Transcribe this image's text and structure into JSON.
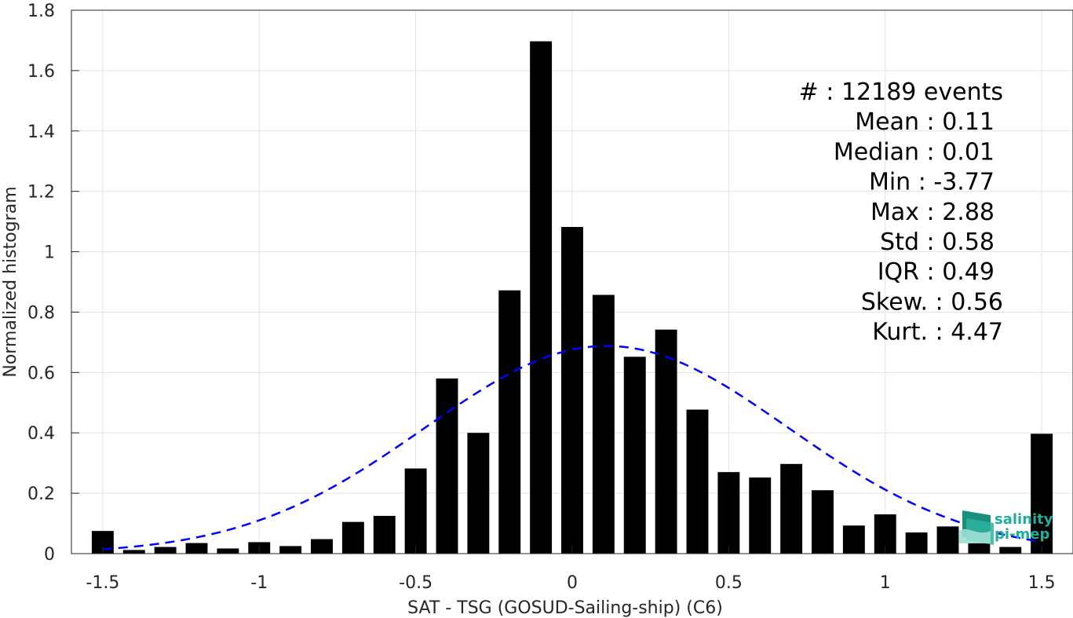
{
  "chart_data": {
    "type": "bar",
    "xlabel": "SAT - TSG (GOSUD-Sailing-ship) (C6)",
    "ylabel": "Normalized histogram",
    "xlim": [
      -1.6,
      1.6
    ],
    "ylim": [
      0,
      1.8
    ],
    "xticks": [
      -1.5,
      -1,
      -0.5,
      0,
      0.5,
      1,
      1.5
    ],
    "xtick_labels": [
      "-1.5",
      "-1",
      "-0.5",
      "0",
      "0.5",
      "1",
      "1.5"
    ],
    "yticks": [
      0,
      0.2,
      0.4,
      0.6,
      0.8,
      1,
      1.2,
      1.4,
      1.6,
      1.8
    ],
    "ytick_labels": [
      "0",
      "0.2",
      "0.4",
      "0.6",
      "0.8",
      "1",
      "1.2",
      "1.4",
      "1.6",
      "1.8"
    ],
    "grid": true,
    "bar_width": 0.07,
    "bar_color": "#000000",
    "x": [
      -1.5,
      -1.4,
      -1.3,
      -1.2,
      -1.1,
      -1.0,
      -0.9,
      -0.8,
      -0.7,
      -0.6,
      -0.5,
      -0.4,
      -0.3,
      -0.2,
      -0.1,
      0.0,
      0.1,
      0.2,
      0.3,
      0.4,
      0.5,
      0.6,
      0.7,
      0.8,
      0.9,
      1.0,
      1.1,
      1.2,
      1.3,
      1.4,
      1.5
    ],
    "values": [
      0.075,
      0.012,
      0.022,
      0.035,
      0.017,
      0.038,
      0.025,
      0.048,
      0.105,
      0.125,
      0.282,
      0.58,
      0.4,
      0.872,
      1.697,
      1.082,
      0.857,
      0.652,
      0.742,
      0.477,
      0.27,
      0.252,
      0.297,
      0.21,
      0.093,
      0.13,
      0.07,
      0.09,
      0.035,
      0.022,
      0.397
    ],
    "fit_curve": {
      "type": "gaussian",
      "mean": 0.11,
      "std": 0.58,
      "x_range": [
        -1.5,
        1.5
      ],
      "color": "#0000ff",
      "style": "dashed"
    },
    "annotations": [
      "#  : 12189 events",
      "Mean : 0.11",
      "Median : 0.01",
      "Min : -3.77",
      "Max : 2.88",
      "Std : 0.58",
      "IQR : 0.49",
      "Skew. : 0.56",
      "Kurt. : 4.47"
    ]
  },
  "logo": {
    "line1": "salinity",
    "line2": "pi-mep"
  }
}
